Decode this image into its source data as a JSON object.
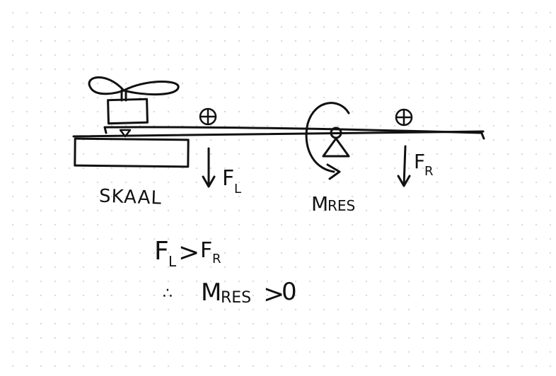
{
  "diagram": {
    "labels": {
      "scale": "SKAAL",
      "force_left": "F",
      "force_left_sub": "L",
      "force_right": "F",
      "force_right_sub": "R",
      "moment": "M",
      "moment_sub": "RES"
    },
    "conclusion": {
      "line1_a": "F",
      "line1_a_sub": "L",
      "line1_op": ">",
      "line1_b": "F",
      "line1_b_sub": "R",
      "therefore": "∴",
      "line2_a": "M",
      "line2_a_sub": "RES",
      "line2_op": ">",
      "line2_b": "0"
    },
    "icons": [
      "propeller-icon",
      "center-of-mass-icon",
      "pivot-triangle-icon",
      "moment-arrow-icon"
    ],
    "ink_color": "#111111"
  }
}
